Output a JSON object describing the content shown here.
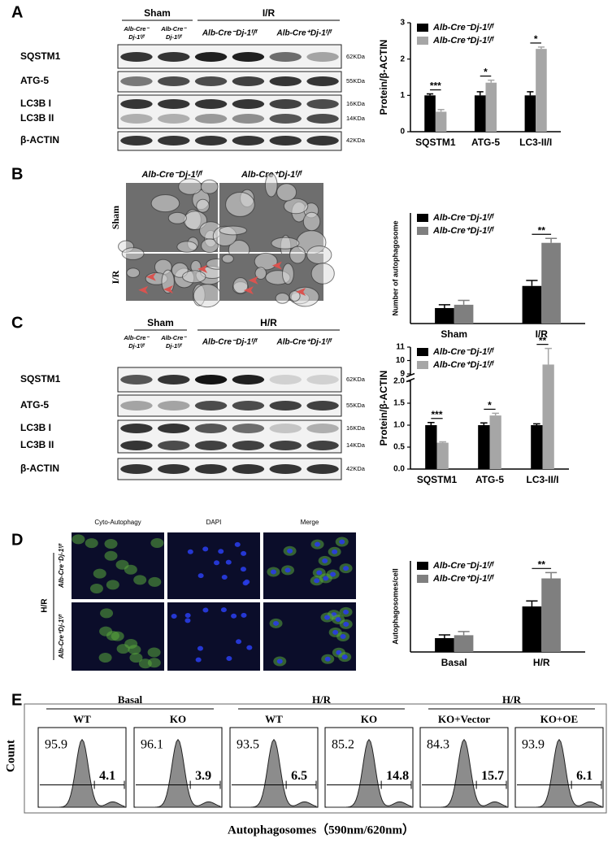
{
  "figure": {
    "panel_labels": [
      "A",
      "B",
      "C",
      "D",
      "E"
    ],
    "blot_a": {
      "groups": [
        "Sham",
        "I/R"
      ],
      "lane_labels": [
        [
          "Alb-Cre⁻",
          "Dj-1ᶠ/ᶠ"
        ],
        [
          "Alb-Cre⁻",
          "Dj-1ᶠ/ᶠ"
        ],
        [
          "Alb-Cre⁻Dj-1ᶠ/ᶠ"
        ],
        [
          "Alb-Cre⁺Dj-1ᶠ/ᶠ"
        ]
      ],
      "rows": [
        "SQSTM1",
        "ATG-5",
        "LC3B I",
        "LC3B II",
        "β-ACTIN"
      ],
      "sizes": [
        "62KDa",
        "55KDa",
        "16KDa",
        "14KDa",
        "42KDa"
      ]
    },
    "micrograph_b": {
      "columns": [
        "Alb-Cre⁻Dj-1ᶠ/ᶠ",
        "Alb-Cre⁺Dj-1ᶠ/ᶠ"
      ],
      "rows": [
        "Sham",
        "I/R"
      ]
    },
    "blot_c": {
      "groups": [
        "Sham",
        "H/R"
      ],
      "lane_labels": [
        [
          "Alb-Cre⁻",
          "Dj-1ᶠ/ᶠ"
        ],
        [
          "Alb-Cre⁻",
          "Dj-1ᶠ/ᶠ"
        ],
        [
          "Alb-Cre⁻Dj-1ᶠ/ᶠ"
        ],
        [
          "Alb-Cre⁺Dj-1ᶠ/ᶠ"
        ]
      ],
      "rows": [
        "SQSTM1",
        "ATG-5",
        "LC3B I",
        "LC3B II",
        "β-ACTIN"
      ],
      "sizes": [
        "62KDa",
        "55KDa",
        "16KDa",
        "14KDa",
        "42KDa"
      ]
    },
    "micrograph_d": {
      "columns": [
        "Cyto-Autophagy",
        "DAPI",
        "Merge"
      ],
      "rows": [
        "Alb-Cre⁻Dj-1ᶠ/ᶠ",
        "Alb-Cre⁺Dj-1ᶠ/ᶠ"
      ],
      "group": "H/R"
    },
    "flow_e": {
      "groups": [
        "Basal",
        "H/R",
        "H/R"
      ],
      "samples": [
        "WT",
        "KO",
        "WT",
        "KO",
        "KO+Vector",
        "KO+OE"
      ],
      "left_percent": [
        95.9,
        96.1,
        93.5,
        85.2,
        84.3,
        93.9
      ],
      "right_percent": [
        4.1,
        3.9,
        6.5,
        14.8,
        15.7,
        6.1
      ],
      "ylabel": "Count",
      "xlabel": "Autophagosomes（590nm/620nm）"
    }
  },
  "chart_data": [
    {
      "type": "bar",
      "ylabel": "Protein/β-ACTIN",
      "categories": [
        "SQSTM1",
        "ATG-5",
        "LC3-II/I"
      ],
      "series": [
        {
          "name": "Alb-Cre⁻Dj-1ᶠ/ᶠ",
          "color": "#000000",
          "values": [
            1.0,
            1.0,
            1.0
          ],
          "errors": [
            0.04,
            0.1,
            0.1
          ]
        },
        {
          "name": "Alb-Cre⁺Dj-1ᶠ/ᶠ",
          "color": "#a6a6a6",
          "values": [
            0.55,
            1.35,
            2.28
          ],
          "errors": [
            0.06,
            0.07,
            0.05
          ]
        }
      ],
      "annotations": [
        "***",
        "*",
        "*"
      ],
      "ylim": [
        0,
        3
      ],
      "yticks": [
        0,
        1,
        2,
        3
      ],
      "legend": "upper-left"
    },
    {
      "type": "bar",
      "ylabel": "Number of autophagosome",
      "categories": [
        "Sham",
        "I/R"
      ],
      "series": [
        {
          "name": "Alb-Cre⁻Dj-1ᶠ/ᶠ",
          "color": "#000000",
          "values": [
            1.4,
            3.4
          ],
          "errors": [
            0.3,
            0.5
          ]
        },
        {
          "name": "Alb-Cre⁺Dj-1ᶠ/ᶠ",
          "color": "#7f7f7f",
          "values": [
            1.7,
            7.3
          ],
          "errors": [
            0.4,
            0.4
          ]
        }
      ],
      "annotations": [
        null,
        "**"
      ],
      "ylim": [
        0,
        10
      ],
      "legend": "upper-left"
    },
    {
      "type": "bar",
      "ylabel": "Protein/β-ACTIN",
      "categories": [
        "SQSTM1",
        "ATG-5",
        "LC3-II/I"
      ],
      "series": [
        {
          "name": "Alb-Cre⁻Dj-1ᶠ/ᶠ",
          "color": "#000000",
          "values": [
            1.0,
            1.0,
            1.0
          ],
          "errors": [
            0.06,
            0.05,
            0.03
          ]
        },
        {
          "name": "Alb-Cre⁺Dj-1ᶠ/ᶠ",
          "color": "#a6a6a6",
          "values": [
            0.6,
            1.22,
            9.7
          ],
          "errors": [
            0.02,
            0.05,
            1.2
          ]
        }
      ],
      "annotations": [
        "***",
        "*",
        "**"
      ],
      "ylim": [
        0,
        11
      ],
      "axis_break": [
        2,
        9
      ],
      "yticks": [
        {
          "value": 0,
          "label": "0.0"
        },
        {
          "value": 0.5,
          "label": "0.5"
        },
        {
          "value": 1,
          "label": "1.0"
        },
        {
          "value": 1.5,
          "label": "1.5"
        },
        {
          "value": 2,
          "label": "2.0"
        },
        9,
        10,
        11
      ],
      "legend": "upper-left"
    },
    {
      "type": "bar",
      "ylabel": "Autophagosomes/cell",
      "categories": [
        "Basal",
        "H/R"
      ],
      "series": [
        {
          "name": "Alb-Cre⁻Dj-1ᶠ/ᶠ",
          "color": "#000000",
          "values": [
            3.8,
            12.5
          ],
          "errors": [
            0.9,
            1.5
          ]
        },
        {
          "name": "Alb-Cre⁺Dj-1ᶠ/ᶠ",
          "color": "#7f7f7f",
          "values": [
            4.6,
            20.2
          ],
          "errors": [
            1.0,
            1.6
          ]
        }
      ],
      "annotations": [
        null,
        "**"
      ],
      "ylim": [
        0,
        25
      ],
      "legend": "upper-left"
    }
  ]
}
